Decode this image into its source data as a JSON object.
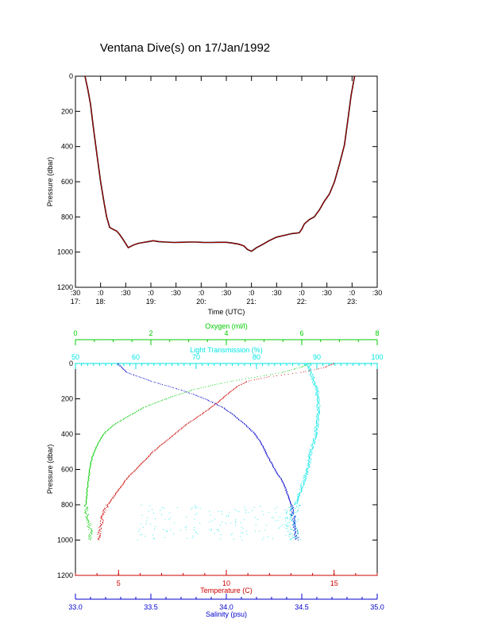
{
  "title": "Ventana Dive(s) on 17/Jan/1992",
  "chart_data": [
    {
      "type": "line",
      "name": "time-pressure",
      "xlabel": "Time (UTC)",
      "ylabel": "Pressure (dbar)",
      "ylim": [
        1200,
        0
      ],
      "y_ticks": [
        "0",
        "200",
        "400",
        "600",
        "800",
        "1000",
        "1200"
      ],
      "x_ticks_minutes": [
        ":30",
        ":0",
        ":30",
        ":0",
        ":30",
        ":0",
        ":30",
        ":0",
        ":30",
        ":0",
        ":30",
        ":0",
        ":30"
      ],
      "x_ticks_hours": [
        "17:",
        "18:",
        "",
        "19:",
        "",
        "20:",
        "",
        "21:",
        "",
        "22:",
        "",
        "23:",
        ""
      ],
      "x_units": "hours UTC",
      "xlim": [
        17.5,
        23.5
      ],
      "x": [
        17.69,
        17.75,
        17.8,
        17.86,
        17.93,
        18.0,
        18.07,
        18.12,
        18.18,
        18.25,
        18.32,
        18.38,
        18.45,
        18.55,
        18.65,
        18.75,
        18.85,
        18.95,
        19.05,
        19.15,
        19.3,
        19.45,
        19.6,
        19.75,
        19.9,
        20.05,
        20.2,
        20.35,
        20.5,
        20.6,
        20.75,
        20.85,
        20.92,
        21.0,
        21.1,
        21.2,
        21.35,
        21.5,
        21.65,
        21.8,
        21.95,
        22.0,
        22.05,
        22.15,
        22.25,
        22.35,
        22.45,
        22.55,
        22.65,
        22.75,
        22.85,
        22.92,
        22.98,
        23.05
      ],
      "y": [
        0,
        80,
        160,
        300,
        450,
        600,
        720,
        800,
        860,
        870,
        880,
        900,
        930,
        975,
        960,
        950,
        945,
        940,
        935,
        940,
        943,
        945,
        944,
        943,
        943,
        945,
        945,
        944,
        944,
        948,
        955,
        965,
        985,
        995,
        975,
        960,
        935,
        915,
        905,
        895,
        890,
        870,
        840,
        815,
        800,
        760,
        710,
        670,
        600,
        500,
        390,
        240,
        110,
        0
      ],
      "series": [
        {
          "name": "",
          "color": "#cc0000"
        }
      ]
    },
    {
      "type": "scatter",
      "name": "profiles",
      "ylabel": "Pressure (dbar)",
      "ylim": [
        1200,
        0
      ],
      "y_ticks": [
        "0",
        "200",
        "400",
        "600",
        "800",
        "1000",
        "1200"
      ],
      "axes": [
        {
          "label": "Oxygen (ml/l)",
          "color": "#00cc00",
          "position": "top-outer",
          "lim": [
            0,
            8
          ],
          "ticks": [
            "0",
            "2",
            "4",
            "6",
            "8"
          ]
        },
        {
          "label": "Light Transmission (%)",
          "color": "#00e5e5",
          "position": "top-inner",
          "lim": [
            50,
            100
          ],
          "ticks": [
            "50",
            "60",
            "70",
            "80",
            "90",
            "100"
          ]
        },
        {
          "label": "Temperature (C)",
          "color": "#cc0000",
          "position": "bottom-inner",
          "lim": [
            3,
            17
          ],
          "ticks": [
            "5",
            "10",
            "15"
          ]
        },
        {
          "label": "Salinity (psu)",
          "color": "#0000cc",
          "position": "bottom-outer",
          "lim": [
            33.0,
            35.0
          ],
          "ticks": [
            "33.0",
            "33.5",
            "34.0",
            "34.5",
            "35.0"
          ]
        }
      ],
      "series": [
        {
          "name": "Oxygen (ml/l)",
          "axis": 0,
          "color": "#00cc00",
          "p": [
            0,
            20,
            50,
            80,
            110,
            150,
            200,
            250,
            300,
            350,
            400,
            450,
            500,
            550,
            600,
            650,
            700,
            750,
            800,
            850,
            900,
            950,
            1000
          ],
          "v": [
            6.2,
            6.0,
            5.5,
            4.7,
            3.9,
            3.1,
            2.4,
            1.8,
            1.4,
            1.0,
            0.75,
            0.6,
            0.5,
            0.42,
            0.38,
            0.35,
            0.32,
            0.3,
            0.28,
            0.3,
            0.35,
            0.4,
            0.38
          ]
        },
        {
          "name": "Light Transmission (%)",
          "axis": 1,
          "color": "#00e5e5",
          "p": [
            0,
            50,
            100,
            150,
            200,
            250,
            300,
            350,
            400,
            450,
            500,
            550,
            600,
            650,
            700,
            750,
            800,
            850,
            900,
            950,
            1000
          ],
          "v": [
            88.5,
            89,
            89.5,
            90,
            90.2,
            90.3,
            90.2,
            90,
            89.8,
            89.5,
            89,
            88.8,
            88.5,
            88,
            87.5,
            87,
            86.5,
            85.8,
            85.5,
            86,
            86.5
          ]
        },
        {
          "name": "Temperature (C)",
          "axis": 2,
          "color": "#cc0000",
          "p": [
            0,
            25,
            50,
            75,
            100,
            130,
            160,
            200,
            250,
            300,
            350,
            400,
            450,
            500,
            550,
            600,
            650,
            700,
            750,
            800,
            850,
            900,
            950,
            1000
          ],
          "v": [
            15.0,
            14.5,
            13.5,
            12.0,
            11.0,
            10.5,
            10.2,
            9.8,
            9.3,
            8.7,
            8.1,
            7.6,
            7.1,
            6.6,
            6.2,
            5.8,
            5.4,
            5.1,
            4.8,
            4.5,
            4.3,
            4.2,
            4.1,
            4.1
          ]
        },
        {
          "name": "Salinity (psu)",
          "axis": 3,
          "color": "#0000cc",
          "p": [
            0,
            50,
            100,
            150,
            200,
            250,
            300,
            350,
            400,
            450,
            500,
            550,
            600,
            650,
            700,
            750,
            800,
            850,
            900,
            950,
            1000
          ],
          "v": [
            33.28,
            33.34,
            33.5,
            33.7,
            33.86,
            33.98,
            34.06,
            34.13,
            34.19,
            34.23,
            34.26,
            34.29,
            34.32,
            34.36,
            34.39,
            34.41,
            34.43,
            34.44,
            34.45,
            34.46,
            34.47
          ]
        }
      ]
    }
  ]
}
